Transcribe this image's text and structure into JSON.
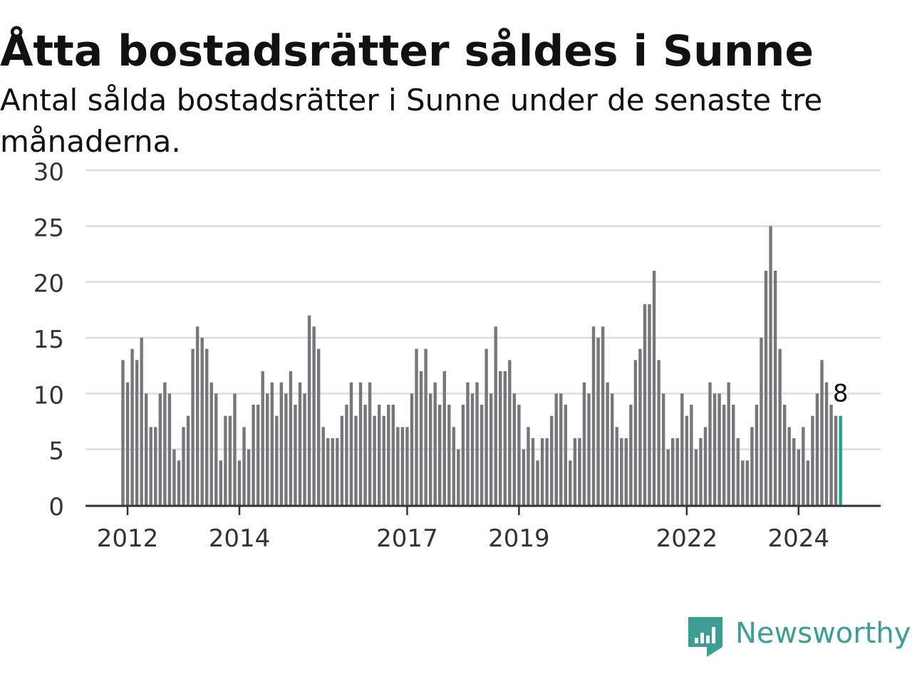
{
  "header": {
    "title": "Åtta bostadsrätter såldes i Sunne",
    "subtitle": "Antal sålda bostadsrätter i Sunne under de senaste tre månaderna."
  },
  "brand": {
    "name": "Newsworthy",
    "color": "#3d9e96",
    "icon": "newsworthy-bar-chart-icon"
  },
  "chart_data": {
    "type": "bar",
    "title": "Åtta bostadsrätter såldes i Sunne",
    "subtitle": "Antal sålda bostadsrätter i Sunne under de senaste tre månaderna.",
    "xlabel": "",
    "ylabel": "",
    "ylim": [
      0,
      30
    ],
    "yticks": [
      0,
      5,
      10,
      15,
      20,
      25,
      30
    ],
    "grid": true,
    "legend": "none",
    "x_tick_labels": [
      "2012",
      "2014",
      "2017",
      "2019",
      "2022",
      "2024"
    ],
    "x_tick_dates": [
      "2012-01",
      "2014-01",
      "2017-01",
      "2019-01",
      "2022-01",
      "2024-01"
    ],
    "start_month": "2011-12",
    "end_month": "2024-10",
    "bar_color": "#77767b",
    "highlight_color": "#18a296",
    "highlight_label": "8",
    "values": [
      13,
      11,
      14,
      13,
      15,
      10,
      7,
      7,
      10,
      11,
      10,
      5,
      4,
      7,
      8,
      14,
      16,
      15,
      14,
      11,
      10,
      4,
      8,
      8,
      10,
      4,
      7,
      5,
      9,
      9,
      12,
      10,
      11,
      8,
      11,
      10,
      12,
      9,
      11,
      10,
      17,
      16,
      14,
      7,
      6,
      6,
      6,
      8,
      9,
      11,
      8,
      11,
      9,
      11,
      8,
      9,
      8,
      9,
      9,
      7,
      7,
      7,
      10,
      14,
      12,
      14,
      10,
      11,
      9,
      12,
      9,
      7,
      5,
      9,
      11,
      10,
      11,
      9,
      14,
      10,
      16,
      12,
      12,
      13,
      10,
      9,
      5,
      7,
      6,
      4,
      6,
      6,
      8,
      10,
      10,
      9,
      4,
      6,
      6,
      11,
      10,
      16,
      15,
      16,
      11,
      10,
      7,
      6,
      6,
      9,
      13,
      14,
      18,
      18,
      21,
      13,
      10,
      5,
      6,
      6,
      10,
      8,
      9,
      5,
      6,
      7,
      11,
      10,
      10,
      9,
      11,
      9,
      6,
      4,
      4,
      7,
      9,
      15,
      21,
      25,
      21,
      14,
      9,
      7,
      6,
      5,
      7,
      4,
      8,
      10,
      13,
      11,
      9,
      8,
      8
    ]
  }
}
